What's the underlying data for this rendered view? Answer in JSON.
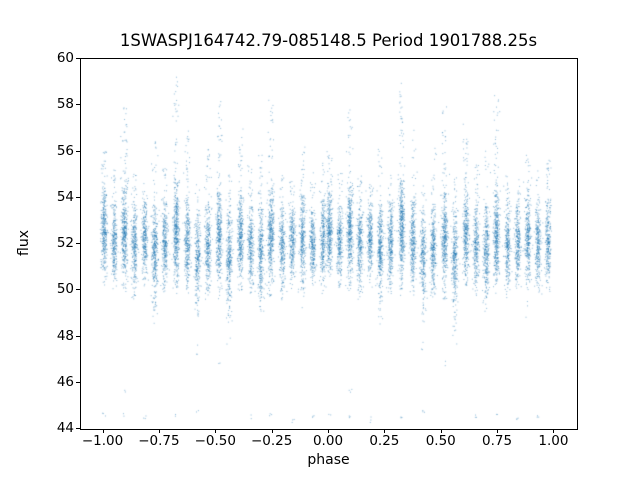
{
  "chart_data": {
    "type": "scatter",
    "title": "1SWASPJ164742.79-085148.5 Period 1901788.25s",
    "xlabel": "phase",
    "ylabel": "flux",
    "xlim": [
      -1.1,
      1.1
    ],
    "ylim": [
      44,
      60
    ],
    "xticks": [
      -1.0,
      -0.75,
      -0.5,
      -0.25,
      0.0,
      0.25,
      0.5,
      0.75,
      1.0
    ],
    "xtick_labels": [
      "−1.00",
      "−0.75",
      "−0.50",
      "−0.25",
      "0.00",
      "0.25",
      "0.50",
      "0.75",
      "1.00"
    ],
    "yticks": [
      44,
      46,
      48,
      50,
      52,
      54,
      56,
      58,
      60
    ],
    "ytick_labels": [
      "44",
      "46",
      "48",
      "50",
      "52",
      "54",
      "56",
      "58",
      "60"
    ],
    "grid": false,
    "marker_color": "#1f77b4",
    "marker_alpha": 0.5,
    "fold_duplicate_offset": -1,
    "bands": [
      {
        "p": 0.005,
        "m": 52.4,
        "s": 0.9,
        "n": 380,
        "t": 56.0,
        "lows": [
          44.6
        ]
      },
      {
        "p": 0.05,
        "m": 52.0,
        "s": 0.8,
        "n": 300,
        "t": 55.2
      },
      {
        "p": 0.095,
        "m": 52.4,
        "s": 1.0,
        "n": 430,
        "t": 57.9,
        "lows": [
          44.5,
          45.6
        ]
      },
      {
        "p": 0.14,
        "m": 51.8,
        "s": 0.9,
        "n": 320,
        "t": 55.0
      },
      {
        "p": 0.185,
        "m": 52.1,
        "s": 0.8,
        "n": 300,
        "t": 54.6,
        "lows": [
          44.4
        ]
      },
      {
        "p": 0.23,
        "m": 51.6,
        "s": 1.0,
        "n": 380,
        "t": 56.4,
        "d": 48.5
      },
      {
        "p": 0.275,
        "m": 52.0,
        "s": 0.9,
        "n": 330,
        "t": 55.3
      },
      {
        "p": 0.325,
        "m": 52.5,
        "s": 1.1,
        "n": 480,
        "t": 59.3,
        "lows": [
          44.5
        ]
      },
      {
        "p": 0.375,
        "m": 52.0,
        "s": 0.9,
        "n": 340,
        "t": 57.0
      },
      {
        "p": 0.42,
        "m": 51.4,
        "s": 1.0,
        "n": 300,
        "t": 54.6,
        "d": 47.2,
        "lows": [
          44.7
        ]
      },
      {
        "p": 0.465,
        "m": 51.8,
        "s": 0.9,
        "n": 330,
        "t": 56.2
      },
      {
        "p": 0.515,
        "m": 52.1,
        "s": 1.0,
        "n": 400,
        "t": 58.2,
        "lows": [
          46.8
        ]
      },
      {
        "p": 0.56,
        "m": 51.3,
        "s": 1.1,
        "n": 340,
        "t": 55.0,
        "d": 47.5
      },
      {
        "p": 0.61,
        "m": 52.2,
        "s": 0.9,
        "n": 380,
        "t": 57.3
      },
      {
        "p": 0.655,
        "m": 51.8,
        "s": 0.9,
        "n": 300,
        "t": 55.4,
        "lows": [
          44.5
        ]
      },
      {
        "p": 0.7,
        "m": 51.5,
        "s": 1.0,
        "n": 340,
        "t": 56.0
      },
      {
        "p": 0.745,
        "m": 52.2,
        "s": 1.0,
        "n": 430,
        "t": 58.4,
        "lows": [
          44.6
        ]
      },
      {
        "p": 0.795,
        "m": 51.8,
        "s": 0.9,
        "n": 300,
        "t": 55.0
      },
      {
        "p": 0.84,
        "m": 52.0,
        "s": 0.8,
        "n": 300,
        "t": 54.8,
        "lows": [
          44.4
        ]
      },
      {
        "p": 0.885,
        "m": 52.2,
        "s": 0.9,
        "n": 340,
        "t": 56.6,
        "d": 48.8
      },
      {
        "p": 0.93,
        "m": 51.8,
        "s": 0.8,
        "n": 300,
        "t": 55.2,
        "lows": [
          44.5
        ]
      },
      {
        "p": 0.975,
        "m": 52.0,
        "s": 0.9,
        "n": 300,
        "t": 55.6
      }
    ]
  }
}
